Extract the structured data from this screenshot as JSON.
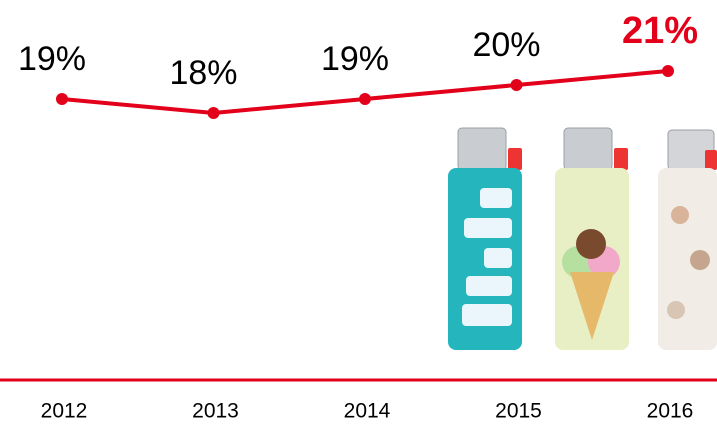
{
  "chart_data": {
    "type": "line",
    "categories": [
      "2012",
      "2013",
      "2014",
      "2015",
      "2016"
    ],
    "values": [
      19,
      18,
      19,
      20,
      21
    ],
    "value_labels": [
      "19%",
      "18%",
      "19%",
      "20%",
      "21%"
    ],
    "color": "#e2001a"
  }
}
